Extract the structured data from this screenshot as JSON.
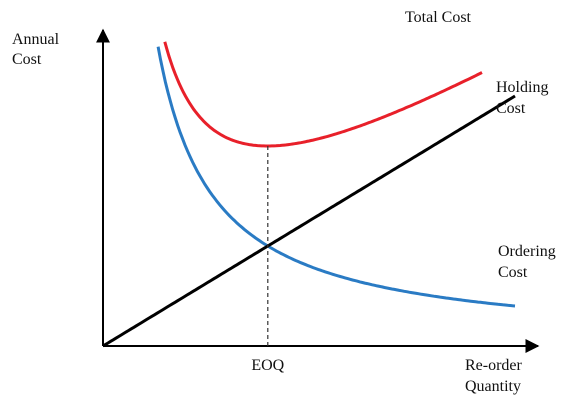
{
  "chart_data": {
    "type": "line",
    "title": "",
    "ylabel": [
      "Annual",
      "Cost"
    ],
    "xlabel": [
      "Re-order",
      "Quantity"
    ],
    "x_marker": {
      "label": "EOQ",
      "x": 1
    },
    "x_range": [
      0,
      2.5
    ],
    "y_range": [
      0,
      3
    ],
    "series": [
      {
        "name": "Total Cost",
        "color": "#e8202a",
        "note_formula": "q + 1/q",
        "x_start": 0.3,
        "x_end": 2.3
      },
      {
        "name": [
          "Holding",
          "Cost"
        ],
        "color": "#000000",
        "note_formula": "q",
        "x_start": 0,
        "x_end": 2.5
      },
      {
        "name": [
          "Ordering",
          "Cost"
        ],
        "color": "#2a7bc4",
        "note_formula": "1/q",
        "x_start": 0.11,
        "x_end": 2.5
      }
    ]
  }
}
